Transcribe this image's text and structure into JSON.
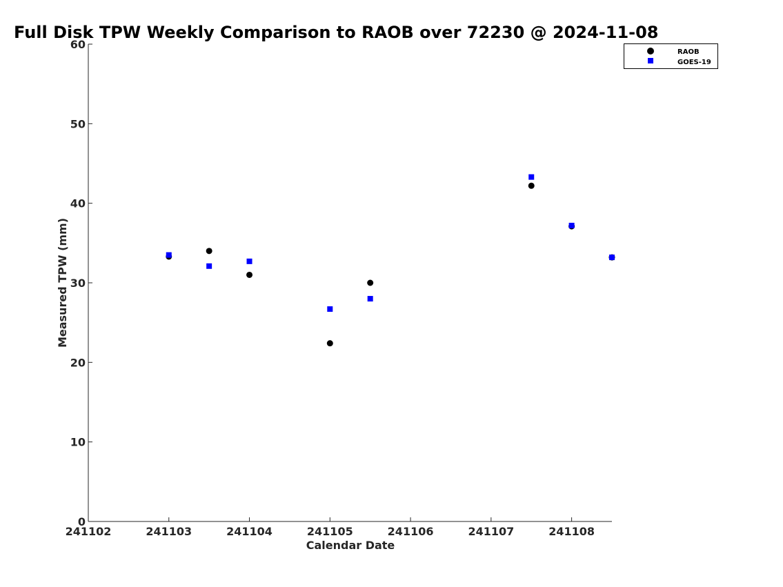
{
  "chart_data": {
    "type": "scatter",
    "title": "Full Disk TPW Weekly Comparison to RAOB over 72230 @ 2024-11-08",
    "xlabel": "Calendar Date",
    "ylabel": "Measured TPW (mm)",
    "xlim": [
      0,
      6.5
    ],
    "ylim": [
      0,
      60
    ],
    "xticks": [
      0,
      1,
      2,
      3,
      4,
      5,
      6
    ],
    "xtick_labels": [
      "241102",
      "241103",
      "241104",
      "241105",
      "241106",
      "241107",
      "241108"
    ],
    "yticks": [
      0,
      10,
      20,
      30,
      40,
      50,
      60
    ],
    "ytick_labels": [
      "0",
      "10",
      "20",
      "30",
      "40",
      "50",
      "60"
    ],
    "legend_position": "top-right",
    "series": [
      {
        "name": "RAOB",
        "marker": "circle",
        "color": "#000000",
        "x": [
          1.0,
          1.5,
          2.0,
          3.0,
          3.5,
          5.5,
          6.0,
          6.5
        ],
        "y": [
          33.3,
          34.0,
          31.0,
          22.4,
          30.0,
          42.2,
          37.1,
          33.2
        ]
      },
      {
        "name": "GOES-19",
        "marker": "square",
        "color": "#0000ff",
        "x": [
          1.0,
          1.5,
          2.0,
          3.0,
          3.5,
          5.5,
          6.0,
          6.5
        ],
        "y": [
          33.5,
          32.1,
          32.7,
          26.7,
          28.0,
          43.3,
          37.2,
          33.2
        ]
      }
    ]
  }
}
